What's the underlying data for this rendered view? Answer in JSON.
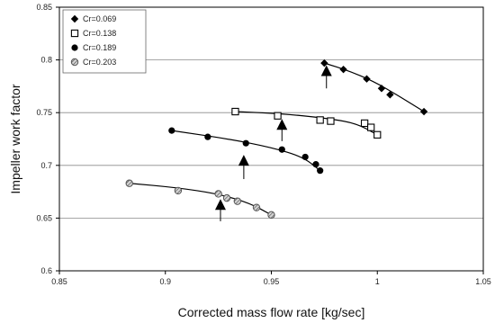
{
  "chart_data": {
    "type": "scatter",
    "xlabel": "Corrected mass flow rate [kg/sec]",
    "ylabel": "Impeller work factor",
    "xlim": [
      0.85,
      1.05
    ],
    "ylim": [
      0.6,
      0.85
    ],
    "xticks": [
      0.85,
      0.9,
      0.95,
      1.0,
      1.05
    ],
    "xtick_labels": [
      "0.85",
      "0.9",
      "0.95",
      "1",
      "1.05"
    ],
    "yticks": [
      0.6,
      0.65,
      0.7,
      0.75,
      0.8,
      0.85
    ],
    "ytick_labels": [
      "0.6",
      "0.65",
      "0.7",
      "0.75",
      "0.8",
      "0.85"
    ],
    "grid": "horizontal",
    "legend_position": "top-left",
    "series": [
      {
        "name": "Cr=0.069",
        "marker": "diamond-filled",
        "color": "#000000",
        "x": [
          0.975,
          0.984,
          0.995,
          1.002,
          1.006,
          1.022
        ],
        "y": [
          0.797,
          0.791,
          0.782,
          0.773,
          0.767,
          0.751
        ],
        "fit": [
          [
            0.975,
            0.797
          ],
          [
            0.986,
            0.79
          ],
          [
            0.998,
            0.78
          ],
          [
            1.01,
            0.766
          ],
          [
            1.022,
            0.751
          ]
        ]
      },
      {
        "name": "Cr=0.138",
        "marker": "square-open",
        "color": "#000000",
        "x": [
          0.933,
          0.953,
          0.973,
          0.978,
          0.994,
          0.997,
          1.0
        ],
        "y": [
          0.751,
          0.747,
          0.743,
          0.742,
          0.74,
          0.736,
          0.729
        ],
        "fit": [
          [
            0.933,
            0.751
          ],
          [
            0.955,
            0.749
          ],
          [
            0.975,
            0.745
          ],
          [
            0.99,
            0.74
          ],
          [
            1.0,
            0.729
          ]
        ]
      },
      {
        "name": "Cr=0.189",
        "marker": "circle-filled",
        "color": "#000000",
        "x": [
          0.903,
          0.92,
          0.938,
          0.955,
          0.966,
          0.971,
          0.973
        ],
        "y": [
          0.733,
          0.727,
          0.721,
          0.715,
          0.708,
          0.701,
          0.695
        ],
        "fit": [
          [
            0.903,
            0.733
          ],
          [
            0.93,
            0.725
          ],
          [
            0.95,
            0.717
          ],
          [
            0.965,
            0.708
          ],
          [
            0.973,
            0.695
          ]
        ]
      },
      {
        "name": "Cr=0.203",
        "marker": "circle-hatched",
        "color": "#555555",
        "x": [
          0.883,
          0.906,
          0.925,
          0.929,
          0.934,
          0.943,
          0.95
        ],
        "y": [
          0.683,
          0.676,
          0.673,
          0.669,
          0.666,
          0.66,
          0.653
        ],
        "fit": [
          [
            0.883,
            0.683
          ],
          [
            0.905,
            0.679
          ],
          [
            0.925,
            0.673
          ],
          [
            0.94,
            0.664
          ],
          [
            0.95,
            0.653
          ]
        ]
      }
    ],
    "annotations": [
      {
        "type": "arrow-up",
        "x": 0.976,
        "y_from": 0.773,
        "y_to": 0.795
      },
      {
        "type": "arrow-up",
        "x": 0.955,
        "y_from": 0.723,
        "y_to": 0.744
      },
      {
        "type": "arrow-up",
        "x": 0.937,
        "y_from": 0.687,
        "y_to": 0.71
      },
      {
        "type": "arrow-up",
        "x": 0.926,
        "y_from": 0.647,
        "y_to": 0.668
      }
    ]
  }
}
